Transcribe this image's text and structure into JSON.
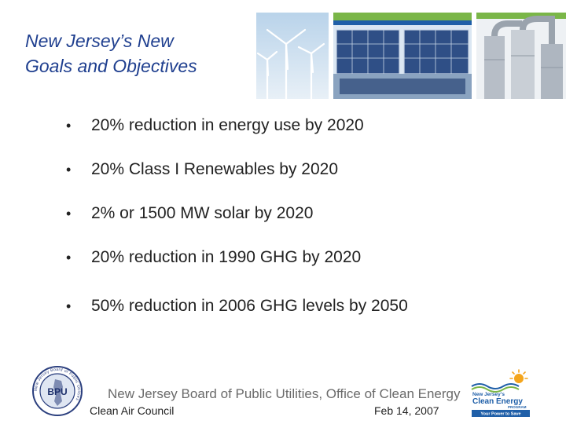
{
  "slide": {
    "title_line1": "New Jersey’s New",
    "title_line2": "Goals and Objectives",
    "bullets": [
      "20% reduction in energy use by 2020",
      "20% Class I Renewables by 2020",
      "2% or 1500 MW solar by 2020",
      "20% reduction in 1990 GHG by 2020",
      "50% reduction in 2006 GHG levels by 2050"
    ],
    "bullet_glyph": "•"
  },
  "footer": {
    "organization": "New Jersey Board of Public Utilities, Office of Clean Energy",
    "left": "Clean Air Council",
    "date": "Feb 14, 2007"
  },
  "logos": {
    "bpu": {
      "text": "BPU",
      "ring_text": "New Jersey Board of Public Utilities"
    },
    "clean_energy": {
      "line1": "New Jersey's",
      "line2": "Clean Energy",
      "line3": "PROGRAM",
      "tagline": "Your Power to Save"
    }
  },
  "colors": {
    "title": "#1f3f8f",
    "clean_energy_blue": "#1f5fa8",
    "clean_energy_green": "#7ab648",
    "sun": "#f4a51c"
  }
}
